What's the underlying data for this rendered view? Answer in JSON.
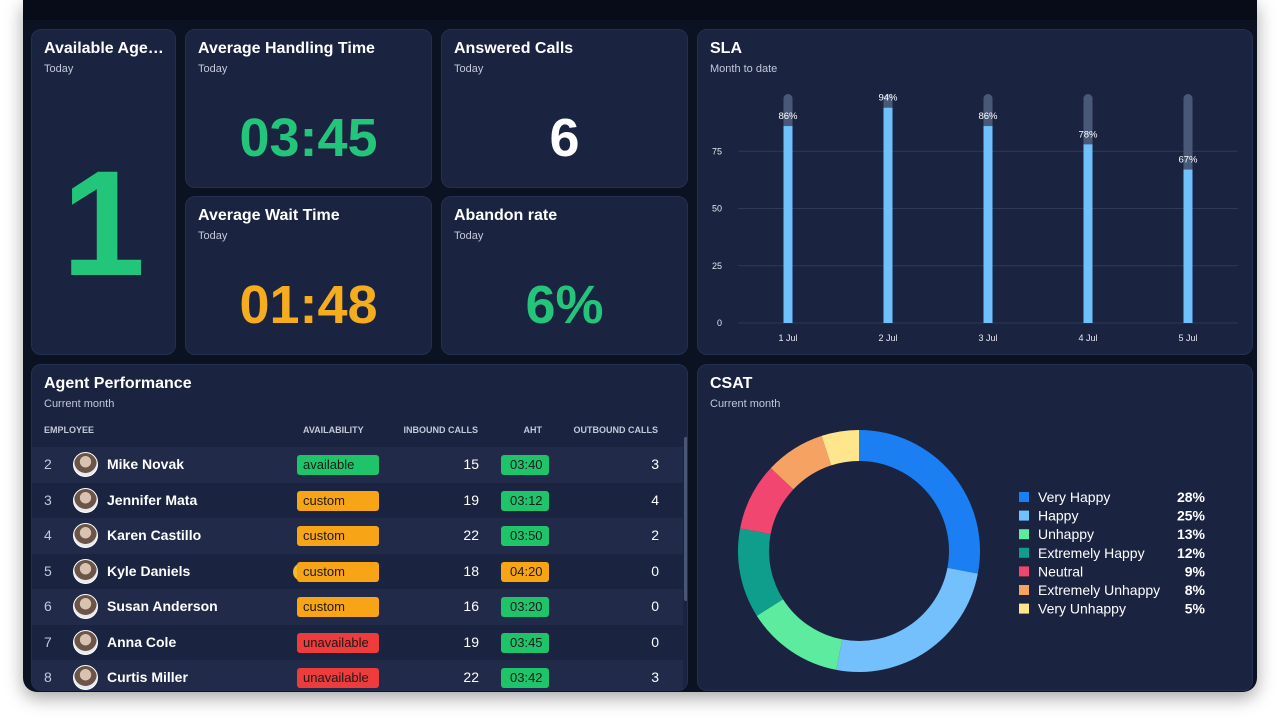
{
  "tiles": [
    {
      "title": "Available Age…",
      "subtitle": "Today",
      "value": 1,
      "color": "#22c57a"
    },
    {
      "title": "Average Handling Time",
      "subtitle": "Today",
      "value": "03:45",
      "color": "#22c57a"
    },
    {
      "title": "Answered Calls",
      "subtitle": "Today",
      "value": 6,
      "color": "#ffffff"
    },
    {
      "title": "Average Wait Time",
      "subtitle": "Today",
      "value": "01:48",
      "color": "#f5ac1f"
    },
    {
      "title": "Abandon rate",
      "subtitle": "Today",
      "value": "6%",
      "color": "#22c57a"
    }
  ],
  "chart_data": [
    {
      "type": "bar",
      "title": "SLA",
      "subtitle": "Month to date",
      "categories": [
        "1 Jul",
        "2 Jul",
        "3 Jul",
        "4 Jul",
        "5 Jul"
      ],
      "values": [
        86,
        94,
        86,
        78,
        67
      ],
      "value_labels": [
        "86%",
        "94%",
        "86%",
        "78%",
        "67%"
      ],
      "color": "#6fc0fb",
      "track_color": "#4a5878",
      "ylim": [
        0,
        100
      ],
      "yticks": [
        0,
        25,
        50,
        75
      ],
      "grid": true
    },
    {
      "type": "pie",
      "title": "CSAT",
      "subtitle": "Current month",
      "categories": [
        "Very Happy",
        "Happy",
        "Unhappy",
        "Extremely Happy",
        "Neutral",
        "Extremely Unhappy",
        "Very Unhappy"
      ],
      "values": [
        28,
        25,
        13,
        12,
        9,
        8,
        5
      ],
      "value_labels": [
        "28%",
        "25%",
        "13%",
        "12%",
        "9%",
        "8%",
        "5%"
      ],
      "colors": [
        "#1b7ef2",
        "#74c0fc",
        "#5debA0",
        "#0f9e8c",
        "#f0466f",
        "#f5a262",
        "#ffe68c"
      ],
      "legend": "right"
    }
  ],
  "table": {
    "title": "Agent Performance",
    "subtitle": "Current month",
    "columns": [
      "EMPLOYEE",
      "AVAILABILITY",
      "INBOUND CALLS",
      "AHT",
      "OUTBOUND CALLS"
    ],
    "rows": [
      {
        "rank": 2,
        "name": "Mike Novak",
        "availability": "available",
        "availability_color": "#1fc46a",
        "inbound": 15,
        "aht": "03:40",
        "aht_color": "#1fc46a",
        "outbound": 3
      },
      {
        "rank": 3,
        "name": "Jennifer Mata",
        "availability": "custom",
        "availability_color": "#f7a516",
        "inbound": 19,
        "aht": "03:12",
        "aht_color": "#1fc46a",
        "outbound": 4
      },
      {
        "rank": 4,
        "name": "Karen Castillo",
        "award": true,
        "availability": "custom",
        "availability_color": "#f7a516",
        "inbound": 22,
        "aht": "03:50",
        "aht_color": "#1fc46a",
        "outbound": 2
      },
      {
        "rank": 5,
        "name": "Kyle Daniels",
        "award": true,
        "availability": "custom",
        "availability_color": "#f7a516",
        "inbound": 18,
        "aht": "04:20",
        "aht_color": "#f7a516",
        "outbound": 0
      },
      {
        "rank": 6,
        "name": "Susan Anderson",
        "availability": "custom",
        "availability_color": "#f7a516",
        "inbound": 16,
        "aht": "03:20",
        "aht_color": "#1fc46a",
        "outbound": 0
      },
      {
        "rank": 7,
        "name": "Anna Cole",
        "availability": "unavailable",
        "availability_color": "#ee3b3b",
        "inbound": 19,
        "aht": "03:45",
        "aht_color": "#1fc46a",
        "outbound": 0
      },
      {
        "rank": 8,
        "name": "Curtis Miller",
        "availability": "unavailable",
        "availability_color": "#ee3b3b",
        "inbound": 22,
        "aht": "03:42",
        "aht_color": "#1fc46a",
        "outbound": 3
      }
    ]
  }
}
